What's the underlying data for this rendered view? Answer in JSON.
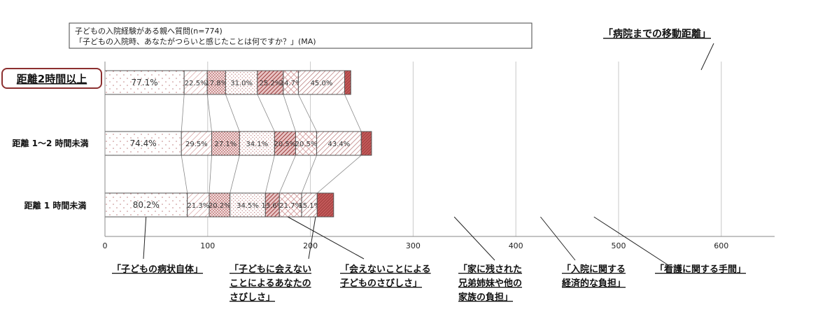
{
  "chart_data": {
    "type": "bar",
    "subtype": "stacked-horizontal",
    "question_box": {
      "line1": "子どもの入院経験がある親へ質問(n=774)",
      "line2": "「子どもの入院時、あなたがつらいと感じたことは何ですか？」(MA)"
    },
    "title": "「病院までの移動距離」",
    "categories": [
      "距離2時間以上",
      "距離 1～2 時間未満",
      "距離 1 時間未満"
    ],
    "highlighted_category": "距離2時間以上",
    "xlim": [
      0,
      650
    ],
    "xticks": [
      0,
      100,
      200,
      300,
      400,
      500,
      600
    ],
    "grid": true,
    "series": [
      {
        "name": "「子どもの病状自体」",
        "values": [
          77.1,
          74.4,
          80.2
        ],
        "labels": [
          "77.1%",
          "74.4%",
          "80.2%"
        ],
        "color": "#c9a0a0",
        "fill": "sparse-dots"
      },
      {
        "name": "「子どもに会えないことによるあなたのさびしさ」",
        "values": [
          22.5,
          29.5,
          21.3
        ],
        "labels": [
          "22.5%",
          "29.5%",
          "21.3%"
        ],
        "color": "#c97b7b",
        "fill": "light-diagonal"
      },
      {
        "name": "「会えないことによる子どものさびしさ」",
        "values": [
          17.8,
          27.1,
          20.2
        ],
        "labels": [
          "17.8%",
          "27.1%",
          "20.2%"
        ],
        "color": "#b86a6a",
        "fill": "dense-dots"
      },
      {
        "name": "「家に残された兄弟姉妹や他の家族の負担」",
        "values": [
          31.0,
          34.1,
          34.5
        ],
        "labels": [
          "31.0%",
          "34.1%",
          "34.5%"
        ],
        "color": "#c98b8b",
        "fill": "fine-dots"
      },
      {
        "name": "「入院に関する経済的な負担」",
        "values": [
          25.2,
          20.5,
          13.6
        ],
        "labels": [
          "25.2%",
          "20.5%",
          "13.6%"
        ],
        "color": "#a04848",
        "fill": "dark-diagonal"
      },
      {
        "name": "「看護に関する手間」",
        "values": [
          14.7,
          20.5,
          21.7
        ],
        "labels": [
          "14.7%",
          "20.5%",
          "21.7%"
        ],
        "color": "#c07070",
        "fill": "crosshatch"
      },
      {
        "name": "",
        "values": [
          45.0,
          43.4,
          15.1
        ],
        "labels": [
          "45.0%",
          "43.4%",
          "15.1%"
        ],
        "color": "#b87878",
        "fill": "diagonal"
      },
      {
        "name": "",
        "values": [
          6.0,
          10.0,
          16.0
        ],
        "labels": [
          "",
          "",
          ""
        ],
        "color": "#a03c3c",
        "fill": "solid-dark"
      }
    ]
  }
}
